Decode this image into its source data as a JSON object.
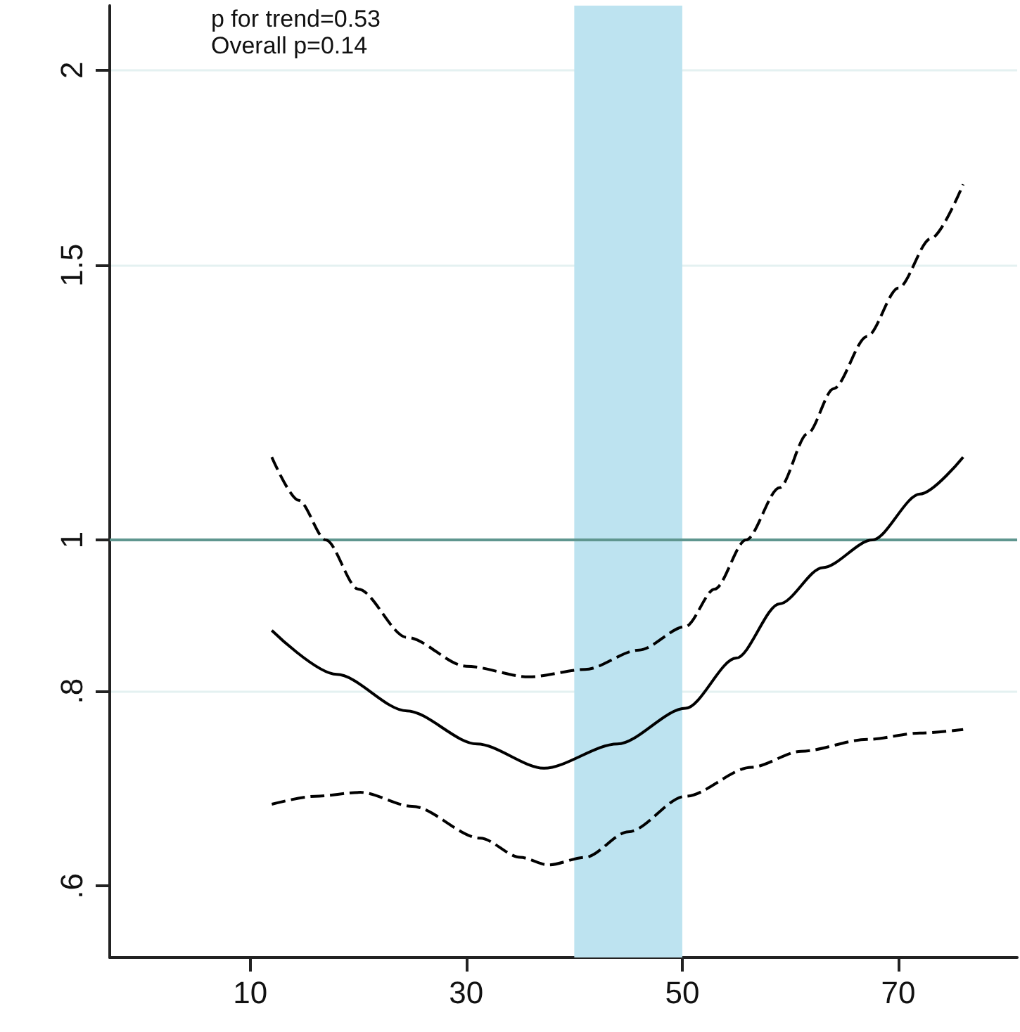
{
  "chart_data": {
    "type": "line",
    "log": "y",
    "grid": "y",
    "marker": "none",
    "xlim": [
      -3,
      81
    ],
    "xticks": [
      10,
      30,
      50,
      70
    ],
    "ylim": [
      0.54,
      2.2
    ],
    "yticks": [
      {
        "value": 0.6,
        "label": ".6"
      },
      {
        "value": 0.8,
        "label": ".8"
      },
      1,
      1.5,
      2
    ],
    "annotations": [
      "p for trend=0.53",
      "Overall p=0.14"
    ],
    "ref_lines": [
      {
        "axis": "y",
        "value": 1,
        "color": "#5f968f"
      }
    ],
    "bands": [
      {
        "axis": "x",
        "from": 40,
        "to": 50,
        "color": "#bde3f0"
      }
    ],
    "series": [
      {
        "color": "#000000",
        "line_style": "solid",
        "x": [
          12,
          18,
          24.5,
          31,
          37.2,
          44,
          50.3,
          55,
          59,
          63,
          67.6,
          72,
          76
        ],
        "values": [
          0.875,
          0.82,
          0.777,
          0.74,
          0.714,
          0.74,
          0.78,
          0.84,
          0.91,
          0.96,
          1.0,
          1.07,
          1.13
        ]
      },
      {
        "color": "#000000",
        "line_style": "dashed",
        "x": [
          12,
          14.5,
          17,
          20,
          24.5,
          30,
          35.8,
          41,
          46,
          50.3,
          53,
          55.9,
          59,
          61.6,
          64,
          67.1,
          70,
          73,
          76
        ],
        "values": [
          1.13,
          1.06,
          1.0,
          0.93,
          0.866,
          0.83,
          0.817,
          0.826,
          0.85,
          0.88,
          0.93,
          1.0,
          1.08,
          1.17,
          1.25,
          1.35,
          1.45,
          1.56,
          1.69
        ]
      },
      {
        "color": "#000000",
        "line_style": "dashed",
        "x": [
          12,
          16,
          20.2,
          25,
          31.3,
          35,
          37.6,
          41,
          45,
          50.3,
          56.4,
          61,
          67.1,
          72,
          76
        ],
        "values": [
          0.677,
          0.685,
          0.689,
          0.675,
          0.644,
          0.626,
          0.619,
          0.626,
          0.65,
          0.685,
          0.715,
          0.732,
          0.745,
          0.752,
          0.756
        ]
      }
    ]
  }
}
